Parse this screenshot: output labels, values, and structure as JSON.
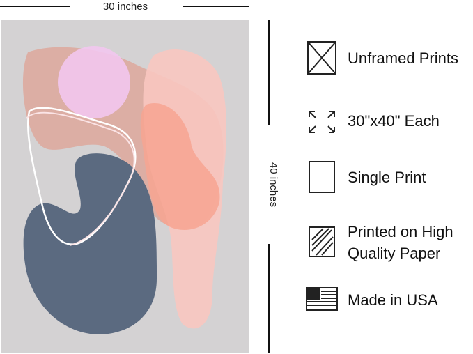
{
  "dimensions": {
    "width": "30 inches",
    "height": "40 inches"
  },
  "features": [
    {
      "lines": [
        "Unframed Prints"
      ]
    },
    {
      "lines": [
        "30\"x40\" Each"
      ]
    },
    {
      "lines": [
        "Single Print"
      ]
    },
    {
      "lines": [
        "Printed on High",
        "Quality Paper"
      ]
    },
    {
      "lines": [
        "Made in USA"
      ]
    }
  ]
}
